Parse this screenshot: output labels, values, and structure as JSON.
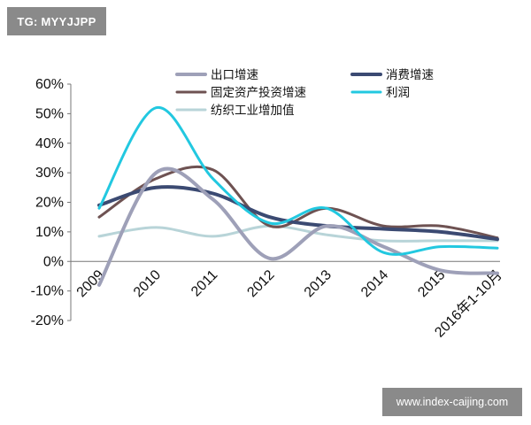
{
  "header": {
    "tag": "TG: MYYJJPP"
  },
  "footer": {
    "watermark": "www.index-caijing.com"
  },
  "chart_data": {
    "type": "line",
    "categories": [
      "2009",
      "2010",
      "2011",
      "2012",
      "2013",
      "2014",
      "2015",
      "2016年1-10月"
    ],
    "ylim": [
      -0.2,
      0.6
    ],
    "y_ticks": [
      {
        "value": 0.6,
        "label": "60%"
      },
      {
        "value": 0.5,
        "label": "50%"
      },
      {
        "value": 0.4,
        "label": "40%"
      },
      {
        "value": 0.3,
        "label": "30%"
      },
      {
        "value": 0.2,
        "label": "20%"
      },
      {
        "value": 0.1,
        "label": "10%"
      },
      {
        "value": 0.0,
        "label": "0%"
      },
      {
        "value": -0.1,
        "label": "-10%"
      },
      {
        "value": -0.2,
        "label": "-20%"
      }
    ],
    "grid": false,
    "legend_position": "top-right",
    "series": [
      {
        "name": "出口增速",
        "color": "#9ea0b8",
        "values": [
          -0.08,
          0.3,
          0.21,
          0.01,
          0.12,
          0.05,
          -0.03,
          -0.04
        ]
      },
      {
        "name": "消费增速",
        "color": "#3b4a72",
        "values": [
          0.19,
          0.25,
          0.23,
          0.15,
          0.12,
          0.11,
          0.1,
          0.075
        ]
      },
      {
        "name": "固定资产投资增速",
        "color": "#6e5252",
        "values": [
          0.15,
          0.28,
          0.31,
          0.12,
          0.18,
          0.12,
          0.12,
          0.08
        ]
      },
      {
        "name": "利润",
        "color": "#22c8e0",
        "values": [
          0.18,
          0.52,
          0.28,
          0.13,
          0.18,
          0.03,
          0.05,
          0.045
        ]
      },
      {
        "name": "纺织工业增加值",
        "color": "#b8d4d8",
        "values": [
          0.085,
          0.115,
          0.085,
          0.12,
          0.09,
          0.07,
          0.07,
          0.07
        ]
      }
    ]
  }
}
